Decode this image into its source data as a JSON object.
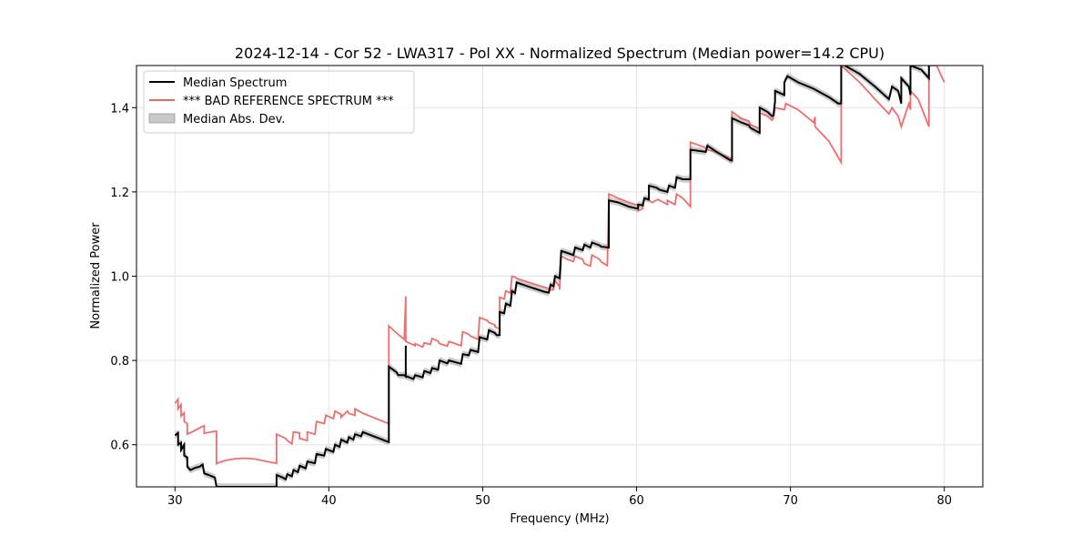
{
  "chart_data": {
    "type": "line",
    "title": "2024-12-14 - Cor 52 - LWA317 - Pol XX - Normalized Spectrum (Median power=14.2 CPU)",
    "xlabel": "Frequency (MHz)",
    "ylabel": "Normalized Power",
    "xlim": [
      27.5,
      82.5
    ],
    "ylim": [
      0.5,
      1.5
    ],
    "xticks": [
      30,
      40,
      50,
      60,
      70,
      80
    ],
    "yticks": [
      0.6,
      0.8,
      1.0,
      1.2,
      1.4
    ],
    "xtick_labels": [
      "30",
      "40",
      "50",
      "60",
      "70",
      "80"
    ],
    "ytick_labels": [
      "0.6",
      "0.8",
      "1.0",
      "1.2",
      "1.4"
    ],
    "grid": true,
    "legend_position": "upper-left",
    "legend": [
      {
        "label": "Median Spectrum",
        "kind": "line",
        "color": "#000000"
      },
      {
        "label": "*** BAD REFERENCE SPECTRUM ***",
        "kind": "line",
        "color": "#f06464"
      },
      {
        "label": "Median Abs. Dev.",
        "kind": "patch",
        "color": "#c8c8c8"
      }
    ],
    "mad_width": 0.008,
    "series": [
      {
        "name": "Median Spectrum",
        "color": "#000000",
        "points": [
          [
            30.0,
            0.622
          ],
          [
            30.2,
            0.628
          ],
          [
            30.2,
            0.6
          ],
          [
            30.4,
            0.605
          ],
          [
            30.4,
            0.588
          ],
          [
            30.6,
            0.6
          ],
          [
            30.6,
            0.574
          ],
          [
            30.8,
            0.57
          ],
          [
            30.8,
            0.548
          ],
          [
            31.0,
            0.54
          ],
          [
            31.3,
            0.545
          ],
          [
            31.6,
            0.548
          ],
          [
            31.8,
            0.553
          ],
          [
            31.9,
            0.532
          ],
          [
            32.2,
            0.528
          ],
          [
            32.6,
            0.522
          ],
          [
            32.7,
            0.5
          ],
          [
            36.6,
            0.5
          ],
          [
            36.6,
            0.528
          ],
          [
            37.0,
            0.522
          ],
          [
            37.2,
            0.518
          ],
          [
            37.3,
            0.53
          ],
          [
            37.6,
            0.525
          ],
          [
            37.7,
            0.54
          ],
          [
            38.0,
            0.535
          ],
          [
            38.1,
            0.55
          ],
          [
            38.5,
            0.544
          ],
          [
            38.6,
            0.56
          ],
          [
            39.1,
            0.556
          ],
          [
            39.2,
            0.578
          ],
          [
            39.7,
            0.574
          ],
          [
            39.8,
            0.59
          ],
          [
            40.3,
            0.583
          ],
          [
            40.4,
            0.6
          ],
          [
            40.7,
            0.595
          ],
          [
            40.8,
            0.612
          ],
          [
            41.2,
            0.605
          ],
          [
            41.3,
            0.618
          ],
          [
            41.6,
            0.612
          ],
          [
            41.7,
            0.625
          ],
          [
            42.1,
            0.62
          ],
          [
            42.2,
            0.63
          ],
          [
            43.2,
            0.616
          ],
          [
            43.9,
            0.606
          ],
          [
            43.9,
            0.785
          ],
          [
            44.4,
            0.772
          ],
          [
            44.5,
            0.765
          ],
          [
            44.9,
            0.765
          ],
          [
            45.0,
            0.762
          ],
          [
            45.0,
            0.835
          ],
          [
            45.0,
            0.763
          ],
          [
            45.5,
            0.756
          ],
          [
            45.6,
            0.765
          ],
          [
            46.1,
            0.76
          ],
          [
            46.2,
            0.775
          ],
          [
            46.6,
            0.77
          ],
          [
            46.7,
            0.782
          ],
          [
            47.1,
            0.778
          ],
          [
            47.2,
            0.8
          ],
          [
            47.7,
            0.793
          ],
          [
            47.8,
            0.8
          ],
          [
            48.6,
            0.792
          ],
          [
            48.7,
            0.815
          ],
          [
            49.1,
            0.812
          ],
          [
            49.2,
            0.825
          ],
          [
            49.7,
            0.82
          ],
          [
            49.8,
            0.855
          ],
          [
            50.3,
            0.85
          ],
          [
            50.4,
            0.872
          ],
          [
            50.8,
            0.865
          ],
          [
            50.9,
            0.86
          ],
          [
            51.1,
            0.86
          ],
          [
            51.1,
            0.915
          ],
          [
            51.4,
            0.912
          ],
          [
            51.5,
            0.935
          ],
          [
            51.8,
            0.93
          ],
          [
            51.9,
            0.965
          ],
          [
            52.1,
            0.96
          ],
          [
            52.2,
            0.985
          ],
          [
            53.0,
            0.975
          ],
          [
            54.0,
            0.963
          ],
          [
            54.3,
            0.961
          ],
          [
            54.4,
            0.98
          ],
          [
            54.6,
            0.976
          ],
          [
            54.7,
            1.0
          ],
          [
            55.0,
            0.995
          ],
          [
            55.1,
            1.06
          ],
          [
            55.5,
            1.055
          ],
          [
            55.9,
            1.05
          ],
          [
            56.0,
            1.068
          ],
          [
            56.5,
            1.062
          ],
          [
            56.6,
            1.075
          ],
          [
            57.0,
            1.068
          ],
          [
            57.1,
            1.08
          ],
          [
            57.6,
            1.073
          ],
          [
            57.7,
            1.07
          ],
          [
            58.2,
            1.068
          ],
          [
            58.2,
            1.18
          ],
          [
            58.8,
            1.175
          ],
          [
            59.5,
            1.165
          ],
          [
            60.1,
            1.16
          ],
          [
            60.1,
            1.17
          ],
          [
            60.4,
            1.168
          ],
          [
            60.5,
            1.185
          ],
          [
            60.8,
            1.182
          ],
          [
            60.8,
            1.215
          ],
          [
            61.3,
            1.21
          ],
          [
            61.5,
            1.205
          ],
          [
            62.0,
            1.2
          ],
          [
            62.1,
            1.215
          ],
          [
            62.5,
            1.21
          ],
          [
            62.6,
            1.235
          ],
          [
            63.0,
            1.23
          ],
          [
            63.5,
            1.23
          ],
          [
            63.5,
            1.3
          ],
          [
            64.5,
            1.295
          ],
          [
            64.6,
            1.31
          ],
          [
            65.2,
            1.295
          ],
          [
            66.1,
            1.275
          ],
          [
            66.2,
            1.275
          ],
          [
            66.2,
            1.375
          ],
          [
            66.8,
            1.365
          ],
          [
            67.3,
            1.358
          ],
          [
            67.4,
            1.352
          ],
          [
            68.0,
            1.34
          ],
          [
            68.0,
            1.4
          ],
          [
            68.5,
            1.39
          ],
          [
            68.8,
            1.38
          ],
          [
            68.9,
            1.382
          ],
          [
            69.0,
            1.415
          ],
          [
            69.0,
            1.44
          ],
          [
            69.6,
            1.43
          ],
          [
            69.6,
            1.46
          ],
          [
            69.8,
            1.475
          ],
          [
            70.5,
            1.46
          ],
          [
            71.5,
            1.445
          ],
          [
            72.5,
            1.425
          ],
          [
            73.1,
            1.41
          ],
          [
            73.3,
            1.41
          ],
          [
            73.3,
            1.505
          ],
          [
            74.5,
            1.48
          ],
          [
            75.5,
            1.45
          ],
          [
            76.4,
            1.42
          ],
          [
            76.6,
            1.45
          ],
          [
            77.0,
            1.44
          ],
          [
            77.2,
            1.41
          ],
          [
            77.2,
            1.47
          ],
          [
            77.7,
            1.45
          ],
          [
            77.8,
            1.43
          ],
          [
            77.8,
            1.5
          ],
          [
            78.5,
            1.49
          ],
          [
            79.0,
            1.47
          ],
          [
            79.0,
            1.5
          ]
        ]
      },
      {
        "name": "*** BAD REFERENCE SPECTRUM ***",
        "color": "#f06464",
        "points": [
          [
            30.0,
            0.698
          ],
          [
            30.2,
            0.708
          ],
          [
            30.2,
            0.685
          ],
          [
            30.4,
            0.695
          ],
          [
            30.4,
            0.668
          ],
          [
            30.6,
            0.676
          ],
          [
            30.6,
            0.655
          ],
          [
            30.8,
            0.65
          ],
          [
            30.8,
            0.625
          ],
          [
            31.2,
            0.632
          ],
          [
            31.6,
            0.64
          ],
          [
            31.9,
            0.645
          ],
          [
            31.9,
            0.627
          ],
          [
            32.6,
            0.632
          ],
          [
            32.7,
            0.632
          ],
          [
            32.7,
            0.555
          ],
          [
            33.2,
            0.562
          ],
          [
            33.8,
            0.566
          ],
          [
            34.5,
            0.568
          ],
          [
            35.2,
            0.566
          ],
          [
            36.0,
            0.56
          ],
          [
            36.6,
            0.556
          ],
          [
            36.6,
            0.625
          ],
          [
            37.2,
            0.615
          ],
          [
            37.3,
            0.61
          ],
          [
            37.6,
            0.602
          ],
          [
            37.7,
            0.63
          ],
          [
            38.1,
            0.628
          ],
          [
            38.1,
            0.615
          ],
          [
            38.6,
            0.61
          ],
          [
            38.6,
            0.63
          ],
          [
            39.1,
            0.625
          ],
          [
            39.2,
            0.655
          ],
          [
            39.7,
            0.65
          ],
          [
            39.8,
            0.67
          ],
          [
            40.3,
            0.662
          ],
          [
            40.4,
            0.68
          ],
          [
            40.8,
            0.672
          ],
          [
            40.8,
            0.665
          ],
          [
            41.2,
            0.68
          ],
          [
            41.3,
            0.674
          ],
          [
            41.7,
            0.67
          ],
          [
            41.7,
            0.685
          ],
          [
            42.2,
            0.675
          ],
          [
            43.2,
            0.66
          ],
          [
            43.9,
            0.65
          ],
          [
            43.9,
            0.882
          ],
          [
            44.4,
            0.865
          ],
          [
            44.9,
            0.85
          ],
          [
            45.0,
            0.952
          ],
          [
            45.0,
            0.845
          ],
          [
            45.6,
            0.835
          ],
          [
            45.6,
            0.84
          ],
          [
            46.1,
            0.832
          ],
          [
            46.2,
            0.842
          ],
          [
            46.6,
            0.838
          ],
          [
            46.7,
            0.852
          ],
          [
            47.1,
            0.846
          ],
          [
            47.2,
            0.84
          ],
          [
            47.7,
            0.834
          ],
          [
            47.8,
            0.845
          ],
          [
            48.6,
            0.835
          ],
          [
            48.7,
            0.868
          ],
          [
            49.1,
            0.862
          ],
          [
            49.2,
            0.858
          ],
          [
            49.7,
            0.85
          ],
          [
            49.8,
            0.902
          ],
          [
            50.3,
            0.895
          ],
          [
            50.4,
            0.89
          ],
          [
            50.8,
            0.884
          ],
          [
            50.8,
            0.88
          ],
          [
            51.1,
            0.875
          ],
          [
            51.1,
            0.95
          ],
          [
            51.4,
            0.946
          ],
          [
            51.5,
            0.965
          ],
          [
            51.8,
            0.96
          ],
          [
            51.9,
            1.0
          ],
          [
            52.1,
            0.998
          ],
          [
            52.2,
            0.995
          ],
          [
            53.0,
            0.985
          ],
          [
            53.9,
            0.975
          ],
          [
            54.1,
            0.973
          ],
          [
            54.3,
            0.97
          ],
          [
            54.4,
            0.968
          ],
          [
            54.6,
            0.968
          ],
          [
            54.7,
            0.99
          ],
          [
            55.0,
            0.975
          ],
          [
            55.0,
            0.968
          ],
          [
            55.1,
            1.048
          ],
          [
            55.5,
            1.04
          ],
          [
            55.9,
            1.035
          ],
          [
            56.0,
            1.048
          ],
          [
            56.5,
            1.04
          ],
          [
            56.6,
            1.03
          ],
          [
            57.0,
            1.024
          ],
          [
            57.1,
            1.05
          ],
          [
            57.6,
            1.04
          ],
          [
            57.7,
            1.034
          ],
          [
            58.1,
            1.025
          ],
          [
            58.2,
            1.195
          ],
          [
            58.8,
            1.185
          ],
          [
            59.5,
            1.175
          ],
          [
            60.1,
            1.168
          ],
          [
            60.1,
            1.155
          ],
          [
            60.4,
            1.16
          ],
          [
            60.5,
            1.185
          ],
          [
            60.8,
            1.18
          ],
          [
            61.0,
            1.175
          ],
          [
            61.4,
            1.182
          ],
          [
            61.5,
            1.18
          ],
          [
            62.0,
            1.17
          ],
          [
            62.0,
            1.18
          ],
          [
            62.5,
            1.17
          ],
          [
            62.6,
            1.195
          ],
          [
            63.0,
            1.185
          ],
          [
            63.5,
            1.165
          ],
          [
            63.5,
            1.318
          ],
          [
            64.5,
            1.305
          ],
          [
            64.6,
            1.3
          ],
          [
            65.1,
            1.295
          ],
          [
            66.1,
            1.28
          ],
          [
            66.2,
            1.27
          ],
          [
            66.2,
            1.39
          ],
          [
            66.8,
            1.375
          ],
          [
            67.3,
            1.368
          ],
          [
            67.4,
            1.36
          ],
          [
            68.0,
            1.35
          ],
          [
            68.0,
            1.388
          ],
          [
            68.5,
            1.38
          ],
          [
            68.8,
            1.37
          ],
          [
            68.9,
            1.375
          ],
          [
            69.0,
            1.4
          ],
          [
            69.6,
            1.395
          ],
          [
            69.7,
            1.41
          ],
          [
            70.5,
            1.395
          ],
          [
            71.5,
            1.365
          ],
          [
            71.6,
            1.378
          ],
          [
            71.6,
            1.355
          ],
          [
            72.5,
            1.32
          ],
          [
            73.3,
            1.27
          ],
          [
            73.3,
            1.5
          ],
          [
            74.5,
            1.46
          ],
          [
            75.5,
            1.42
          ],
          [
            76.4,
            1.385
          ],
          [
            76.6,
            1.4
          ],
          [
            77.0,
            1.38
          ],
          [
            77.2,
            1.355
          ],
          [
            77.7,
            1.41
          ],
          [
            77.8,
            1.395
          ],
          [
            77.8,
            1.44
          ],
          [
            78.3,
            1.42
          ],
          [
            79.0,
            1.355
          ],
          [
            79.0,
            1.5
          ],
          [
            79.5,
            1.5
          ],
          [
            80.0,
            1.46
          ]
        ]
      }
    ]
  }
}
